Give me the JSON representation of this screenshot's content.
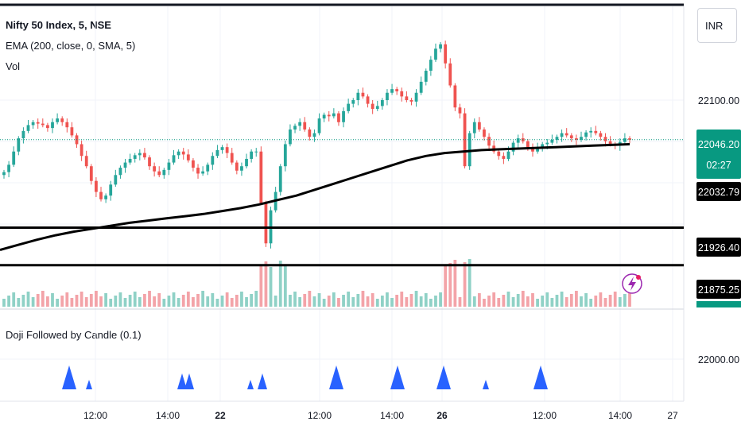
{
  "legend": {
    "title": "Nifty 50 Index, 5, NSE",
    "ema": "EMA (200, close, 0, SMA, 5)",
    "vol": "Vol",
    "indicator": "Doji Followed by Candle (0.1)"
  },
  "currency_button": "INR",
  "colors": {
    "up": "#26a69a",
    "down": "#ef5350",
    "up_vol": "#8fd1c6",
    "down_vol": "#f3a3a8",
    "ema": "#000000",
    "marker": "#2962ff",
    "last_price_bg": "#089981"
  },
  "chart_data": {
    "type": "candlestick",
    "title": "Nifty 50 Index, 5, NSE",
    "xlabel": "",
    "ylabel": "",
    "x_tick_labels": [
      "12:00",
      "14:00",
      "22",
      "12:00",
      "14:00",
      "26",
      "12:00",
      "14:00",
      "27"
    ],
    "y_tick_labels": [
      "22100.00",
      "22000.00"
    ],
    "price_range": [
      21850,
      22150
    ],
    "horizontal_levels": [
      21926.4,
      21875.25
    ],
    "last_price": {
      "price": "22046.20",
      "countdown": "02:27"
    },
    "ema_value_label": "22032.79",
    "level_labels": [
      "21926.40",
      "21875.25"
    ],
    "ema_series": [
      21896,
      21903,
      21910,
      21916,
      21921,
      21925,
      21929,
      21933,
      21936,
      21939,
      21942,
      21945,
      21949,
      21953,
      21958,
      21964,
      21970,
      21978,
      21986,
      21994,
      22002,
      22010,
      22018,
      22024,
      22028,
      22030,
      22032,
      22033,
      22034,
      22035,
      22036,
      22037,
      22038,
      22039,
      22040
    ],
    "marker_sizes": [
      "large",
      "small",
      "medium",
      "medium",
      "small",
      "medium",
      "large",
      "large",
      "large",
      "small",
      "large"
    ],
    "series": [
      {
        "name": "close",
        "values": [
          22002,
          22012,
          22030,
          22048,
          22058,
          22066,
          22070,
          22068,
          22066,
          22062,
          22070,
          22075,
          22070,
          22063,
          22052,
          22040,
          22024,
          22010,
          21990,
          21975,
          21965,
          21970,
          21985,
          21998,
          22008,
          22015,
          22020,
          22025,
          22028,
          22022,
          22010,
          22003,
          21998,
          22005,
          22015,
          22025,
          22030,
          22026,
          22018,
          22008,
          22000,
          22003,
          22012,
          22024,
          22032,
          22036,
          22028,
          22015,
          22004,
          22010,
          22020,
          22030,
          22030,
          21960,
          21905,
          21950,
          21975,
          22010,
          22040,
          22060,
          22065,
          22070,
          22060,
          22050,
          22055,
          22075,
          22080,
          22078,
          22082,
          22070,
          22085,
          22095,
          22100,
          22110,
          22105,
          22095,
          22088,
          22092,
          22100,
          22110,
          22115,
          22112,
          22105,
          22100,
          22098,
          22110,
          22125,
          22140,
          22155,
          22170,
          22176,
          22150,
          22120,
          22090,
          22082,
          22010,
          22055,
          22070,
          22060,
          22050,
          22038,
          22030,
          22024,
          22020,
          22030,
          22042,
          22048,
          22044,
          22036,
          22030,
          22035,
          22040,
          22042,
          22046,
          22050,
          22055,
          22052,
          22048,
          22046,
          22050,
          22056,
          22058,
          22055,
          22050,
          22044,
          22040,
          22038,
          22043,
          22048,
          22046
        ]
      }
    ]
  }
}
